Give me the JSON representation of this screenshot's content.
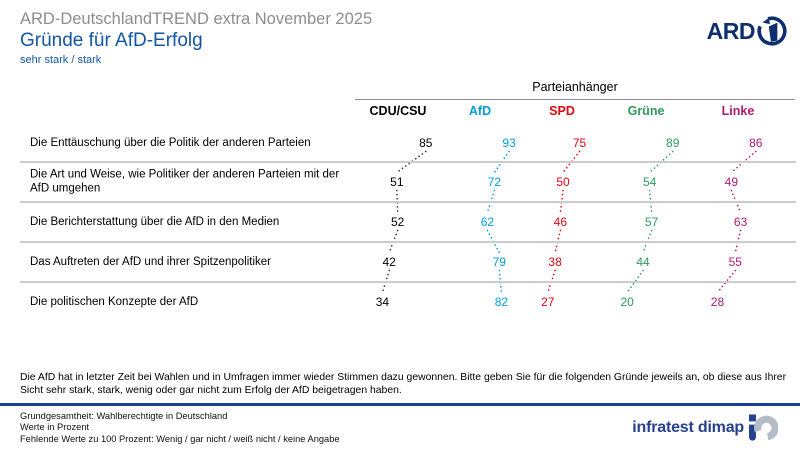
{
  "header": {
    "suptitle": "ARD-DeutschlandTREND extra November 2025",
    "title": "Gründe für AfD-Erfolg",
    "subtitle": "sehr stark / stark",
    "ard_logo_text": "ARD"
  },
  "chart_data": {
    "type": "table",
    "group_header": "Parteianhänger",
    "categories": [
      "Die Enttäuschung über die Politik der anderen Parteien",
      "Die Art und Weise, wie Politiker der anderen Parteien mit der AfD umgehen",
      "Die Berichterstattung über die AfD in den Medien",
      "Das Auftreten der AfD und ihrer Spitzenpolitiker",
      "Die politischen Konzepte der AfD"
    ],
    "series": [
      {
        "name": "CDU/CSU",
        "color": "#000000",
        "values": [
          85,
          51,
          52,
          42,
          34
        ]
      },
      {
        "name": "AfD",
        "color": "#009ee0",
        "values": [
          93,
          72,
          62,
          79,
          82
        ]
      },
      {
        "name": "SPD",
        "color": "#e30613",
        "values": [
          75,
          50,
          46,
          38,
          27
        ]
      },
      {
        "name": "Grüne",
        "color": "#2e9b5e",
        "values": [
          89,
          54,
          57,
          44,
          20
        ]
      },
      {
        "name": "Linke",
        "color": "#ad1a72",
        "values": [
          86,
          49,
          63,
          55,
          28
        ]
      }
    ],
    "value_range": [
      0,
      100
    ],
    "notes": "dotted connector lines between rows per party column"
  },
  "question": "Die AfD hat in letzter Zeit bei Wahlen und in Umfragen immer wieder Stimmen dazu gewonnen. Bitte geben Sie für die folgenden Gründe jeweils an, ob diese aus Ihrer Sicht sehr stark, stark, wenig oder gar nicht zum Erfolg der AfD beigetragen haben.",
  "footer": {
    "lines": [
      "Grundgesamtheit: Wahlberechtigte in Deutschland",
      "Werte in Prozent",
      "Fehlende Werte zu 100 Prozent: Wenig / gar nicht / weiß nicht / keine Angabe"
    ],
    "brand": "infratest dimap"
  },
  "icons": {
    "ard_mark": "ard-one-icon",
    "brand_mark": "infratest-dimap-mark-icon"
  },
  "colors": {
    "title_blue": "#1356a4",
    "suptitle_gray": "#8d8d8d",
    "ard_navy": "#0e2f6d",
    "brand_blue": "#26418e",
    "rule_blue": "#1d3e96",
    "separator_gray": "#cccccc"
  }
}
